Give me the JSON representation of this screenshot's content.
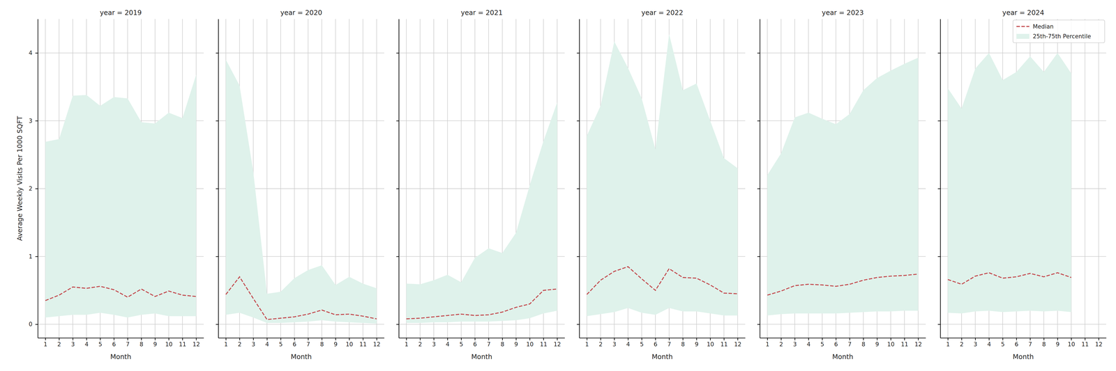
{
  "chart_data": [
    {
      "type": "line",
      "title": "year = 2019",
      "x_label": "Month",
      "y_label": "Average Weekly Visits Per 1000 SQFT",
      "x": [
        1,
        2,
        3,
        4,
        5,
        6,
        7,
        8,
        9,
        10,
        11,
        12
      ],
      "xlim": [
        0.45,
        12.55
      ],
      "xticks": [
        1,
        2,
        3,
        4,
        5,
        6,
        7,
        8,
        9,
        10,
        11,
        12
      ],
      "ylim": [
        -0.2,
        4.5
      ],
      "yticks": [
        0,
        1,
        2,
        3,
        4
      ],
      "grid": true,
      "series": [
        {
          "name": "Median",
          "type": "line",
          "color": "#c44e52",
          "line_style": "dashed",
          "values": [
            0.35,
            0.43,
            0.55,
            0.53,
            0.56,
            0.51,
            0.4,
            0.52,
            0.41,
            0.49,
            0.43,
            0.41
          ]
        },
        {
          "name": "25th-75th Percentile",
          "type": "area",
          "color": "#dff2eb",
          "lower": [
            0.1,
            0.12,
            0.14,
            0.14,
            0.17,
            0.14,
            0.1,
            0.14,
            0.16,
            0.12,
            0.12,
            0.12
          ],
          "upper": [
            2.69,
            2.73,
            3.37,
            3.38,
            3.22,
            3.35,
            3.33,
            2.98,
            2.96,
            3.12,
            3.04,
            3.68
          ]
        }
      ]
    },
    {
      "type": "line",
      "title": "year = 2020",
      "x_label": "Month",
      "tick_labels": "x",
      "x": [
        1,
        2,
        3,
        4,
        5,
        6,
        7,
        8,
        9,
        10,
        11,
        12
      ],
      "xlim": [
        0.45,
        12.55
      ],
      "xticks": [
        1,
        2,
        3,
        4,
        5,
        6,
        7,
        8,
        9,
        10,
        11,
        12
      ],
      "ylim": [
        -0.2,
        4.5
      ],
      "yticks": [
        0,
        1,
        2,
        3,
        4
      ],
      "grid": true,
      "series": [
        {
          "name": "Median",
          "type": "line",
          "color": "#c44e52",
          "line_style": "dashed",
          "values": [
            0.44,
            0.7,
            0.38,
            0.07,
            0.09,
            0.11,
            0.15,
            0.21,
            0.14,
            0.15,
            0.12,
            0.08
          ]
        },
        {
          "name": "25th-75th Percentile",
          "type": "area",
          "color": "#dff2eb",
          "lower": [
            0.14,
            0.17,
            0.1,
            0.02,
            0.02,
            0.03,
            0.04,
            0.06,
            0.04,
            0.03,
            0.02,
            0.01
          ],
          "upper": [
            3.9,
            3.52,
            2.25,
            0.45,
            0.48,
            0.68,
            0.8,
            0.87,
            0.58,
            0.7,
            0.6,
            0.53
          ]
        }
      ]
    },
    {
      "type": "line",
      "title": "year = 2021",
      "x_label": "Month",
      "tick_labels": "x",
      "x": [
        1,
        2,
        3,
        4,
        5,
        6,
        7,
        8,
        9,
        10,
        11,
        12
      ],
      "xlim": [
        0.45,
        12.55
      ],
      "xticks": [
        1,
        2,
        3,
        4,
        5,
        6,
        7,
        8,
        9,
        10,
        11,
        12
      ],
      "ylim": [
        -0.2,
        4.5
      ],
      "yticks": [
        0,
        1,
        2,
        3,
        4
      ],
      "grid": true,
      "series": [
        {
          "name": "Median",
          "type": "line",
          "color": "#c44e52",
          "line_style": "dashed",
          "values": [
            0.08,
            0.09,
            0.11,
            0.13,
            0.15,
            0.13,
            0.14,
            0.18,
            0.25,
            0.3,
            0.5,
            0.52
          ]
        },
        {
          "name": "25th-75th Percentile",
          "type": "area",
          "color": "#dff2eb",
          "lower": [
            0.02,
            0.02,
            0.03,
            0.03,
            0.04,
            0.04,
            0.04,
            0.05,
            0.06,
            0.09,
            0.16,
            0.2
          ],
          "upper": [
            0.6,
            0.59,
            0.65,
            0.73,
            0.62,
            0.98,
            1.12,
            1.05,
            1.35,
            2.05,
            2.7,
            3.27
          ]
        }
      ]
    },
    {
      "type": "line",
      "title": "year = 2022",
      "x_label": "Month",
      "tick_labels": "x",
      "x": [
        1,
        2,
        3,
        4,
        5,
        6,
        7,
        8,
        9,
        10,
        11,
        12
      ],
      "xlim": [
        0.45,
        12.55
      ],
      "xticks": [
        1,
        2,
        3,
        4,
        5,
        6,
        7,
        8,
        9,
        10,
        11,
        12
      ],
      "ylim": [
        -0.2,
        4.5
      ],
      "yticks": [
        0,
        1,
        2,
        3,
        4
      ],
      "grid": true,
      "series": [
        {
          "name": "Median",
          "type": "line",
          "color": "#c44e52",
          "line_style": "dashed",
          "values": [
            0.44,
            0.65,
            0.78,
            0.85,
            0.67,
            0.5,
            0.82,
            0.69,
            0.68,
            0.58,
            0.46,
            0.45
          ]
        },
        {
          "name": "25th-75th Percentile",
          "type": "area",
          "color": "#dff2eb",
          "lower": [
            0.12,
            0.15,
            0.18,
            0.24,
            0.17,
            0.14,
            0.24,
            0.19,
            0.19,
            0.16,
            0.13,
            0.13
          ],
          "upper": [
            2.78,
            3.22,
            4.17,
            3.78,
            3.33,
            2.58,
            4.28,
            3.45,
            3.55,
            3.0,
            2.45,
            2.3
          ]
        }
      ]
    },
    {
      "type": "line",
      "title": "year = 2023",
      "x_label": "Month",
      "tick_labels": "x",
      "x": [
        1,
        2,
        3,
        4,
        5,
        6,
        7,
        8,
        9,
        10,
        11,
        12
      ],
      "xlim": [
        0.45,
        12.55
      ],
      "xticks": [
        1,
        2,
        3,
        4,
        5,
        6,
        7,
        8,
        9,
        10,
        11,
        12
      ],
      "ylim": [
        -0.2,
        4.5
      ],
      "yticks": [
        0,
        1,
        2,
        3,
        4
      ],
      "grid": true,
      "series": [
        {
          "name": "Median",
          "type": "line",
          "color": "#c44e52",
          "line_style": "dashed",
          "values": [
            0.43,
            0.49,
            0.57,
            0.59,
            0.58,
            0.56,
            0.59,
            0.65,
            0.69,
            0.71,
            0.72,
            0.74
          ]
        },
        {
          "name": "25th-75th Percentile",
          "type": "area",
          "color": "#dff2eb",
          "lower": [
            0.13,
            0.15,
            0.16,
            0.16,
            0.16,
            0.16,
            0.17,
            0.18,
            0.19,
            0.19,
            0.2,
            0.2
          ],
          "upper": [
            2.2,
            2.52,
            3.05,
            3.12,
            3.03,
            2.95,
            3.1,
            3.45,
            3.63,
            3.74,
            3.84,
            3.93
          ]
        }
      ]
    },
    {
      "type": "line",
      "title": "year = 2024",
      "x_label": "Month",
      "tick_labels": "x",
      "legend": "upper right",
      "x": [
        1,
        2,
        3,
        4,
        5,
        6,
        7,
        8,
        9,
        10
      ],
      "xlim": [
        0.45,
        12.55
      ],
      "xticks": [
        1,
        2,
        3,
        4,
        5,
        6,
        7,
        8,
        9,
        10,
        11,
        12
      ],
      "ylim": [
        -0.2,
        4.5
      ],
      "yticks": [
        0,
        1,
        2,
        3,
        4
      ],
      "grid": true,
      "series": [
        {
          "name": "Median",
          "type": "line",
          "color": "#c44e52",
          "line_style": "dashed",
          "values": [
            0.66,
            0.59,
            0.71,
            0.76,
            0.68,
            0.7,
            0.75,
            0.7,
            0.76,
            0.69
          ]
        },
        {
          "name": "25th-75th Percentile",
          "type": "area",
          "color": "#dff2eb",
          "lower": [
            0.17,
            0.16,
            0.19,
            0.2,
            0.18,
            0.19,
            0.2,
            0.19,
            0.2,
            0.18
          ],
          "upper": [
            3.48,
            3.18,
            3.77,
            4.0,
            3.6,
            3.72,
            3.95,
            3.72,
            4.0,
            3.7
          ]
        }
      ]
    }
  ]
}
